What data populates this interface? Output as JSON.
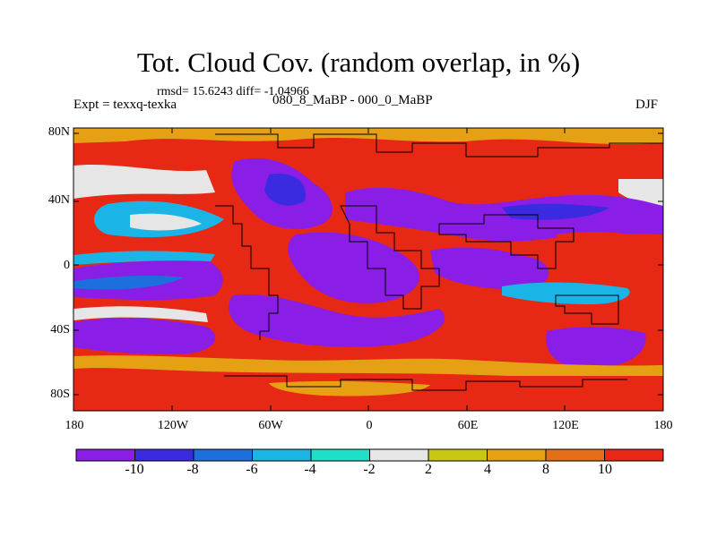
{
  "header": {
    "title": "Tot. Cloud Cov. (random overlap, in %)",
    "stats": "rmsd= 15.6243 diff= -1.04966",
    "experiment": "Expt = texxq-texka",
    "difference": "080_8_MaBP - 000_0_MaBP",
    "season": "DJF"
  },
  "map_axes": {
    "lat_labels": [
      "80N",
      "40N",
      "0",
      "40S",
      "80S"
    ],
    "lon_labels": [
      "180",
      "120W",
      "60W",
      "0",
      "60E",
      "120E",
      "180"
    ]
  },
  "colorbar": {
    "colors": [
      "#8a1ee6",
      "#3a2be0",
      "#1c6fdc",
      "#1ab4e6",
      "#1ee0c8",
      "#e6e6e6",
      "#c8c814",
      "#e6a014",
      "#e66e14",
      "#e62814"
    ],
    "tick_labels": [
      "-10",
      "-8",
      "-6",
      "-4",
      "-2",
      "2",
      "4",
      "8",
      "10"
    ]
  }
}
